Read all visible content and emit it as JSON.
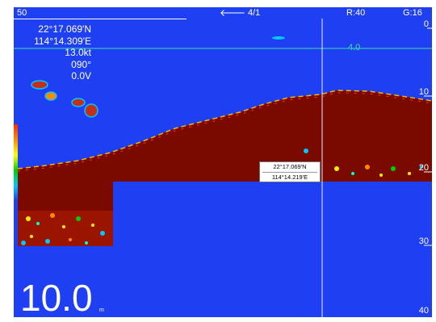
{
  "header": {
    "range_value": "50",
    "nav_arrow_glyph": "🡐",
    "page_indicator": "4/1",
    "range_readout": "R:40",
    "gain_readout": "G:16"
  },
  "info": {
    "latitude": "22°17.069'N",
    "longitude": "114°14.309'E",
    "speed": "13.0kt",
    "heading": "090°",
    "voltage": "0.0V"
  },
  "depth": {
    "value": "10.0",
    "unit": "m"
  },
  "scale": {
    "labels": [
      "0",
      "10",
      "20",
      "30",
      "40"
    ]
  },
  "marker": {
    "depth_label": "4.0"
  },
  "cursor": {
    "latitude": "22°17.069'N",
    "longitude": "114°14.219'E"
  },
  "colors": {
    "water": "#1f3ff2",
    "seabed": "#7a0a00",
    "text": "#ffffff",
    "marker_line": "#37e2a6",
    "cursor_line": "#e6ecff"
  },
  "icons": {
    "nav_arrow": "left-arrow-icon",
    "color_bar": "color-scale-icon"
  }
}
